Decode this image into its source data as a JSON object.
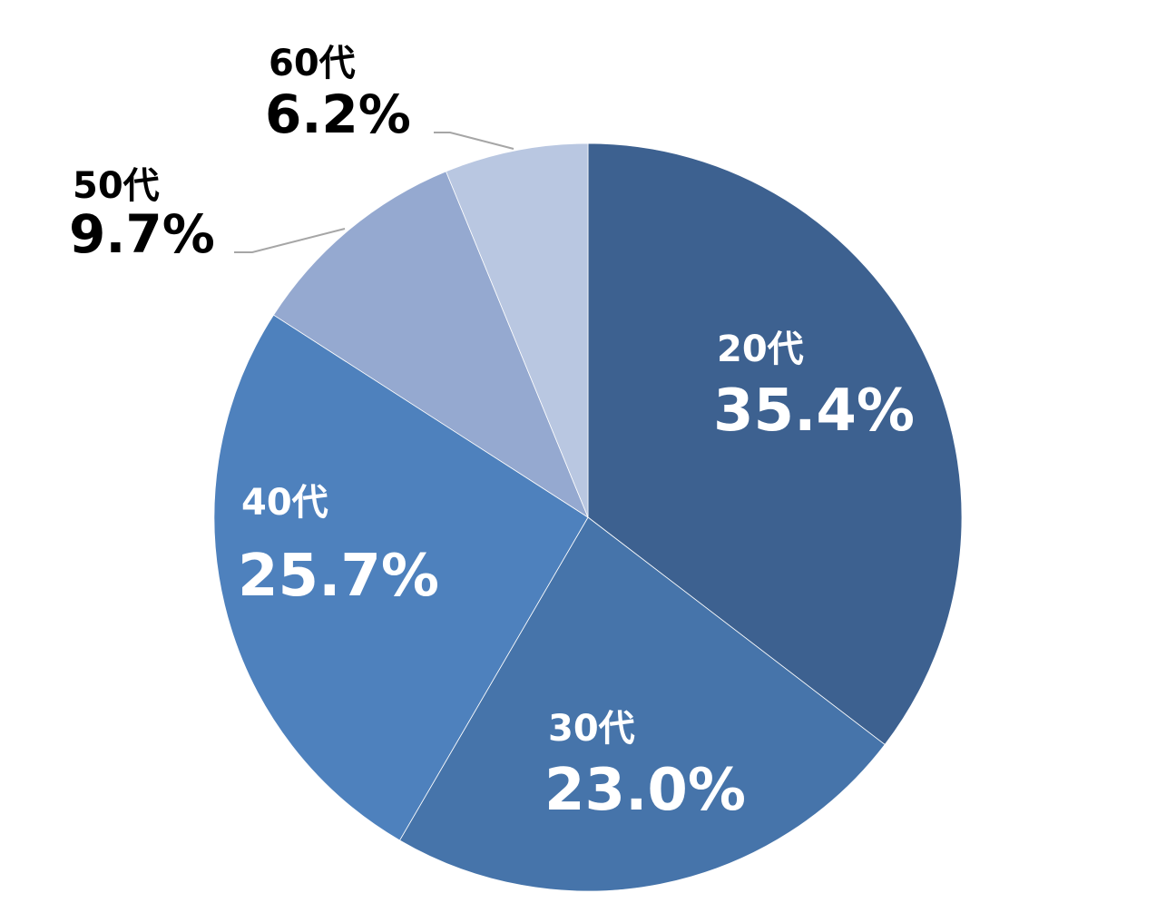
{
  "chart_data": {
    "type": "pie",
    "categories": [
      "20代",
      "30代",
      "40代",
      "50代",
      "60代"
    ],
    "values": [
      35.4,
      23.0,
      25.7,
      9.7,
      6.2
    ],
    "value_labels": [
      "35.4%",
      "23.0%",
      "25.7%",
      "9.7%",
      "6.2%"
    ],
    "colors": [
      "#3d6190",
      "#4674aa",
      "#4e81bd",
      "#95a9d0",
      "#b9c7e1"
    ],
    "label_text_colors": [
      "#ffffff",
      "#ffffff",
      "#ffffff",
      "#000000",
      "#000000"
    ],
    "start_angle": "12 o'clock",
    "direction": "clockwise",
    "legend": "none"
  }
}
